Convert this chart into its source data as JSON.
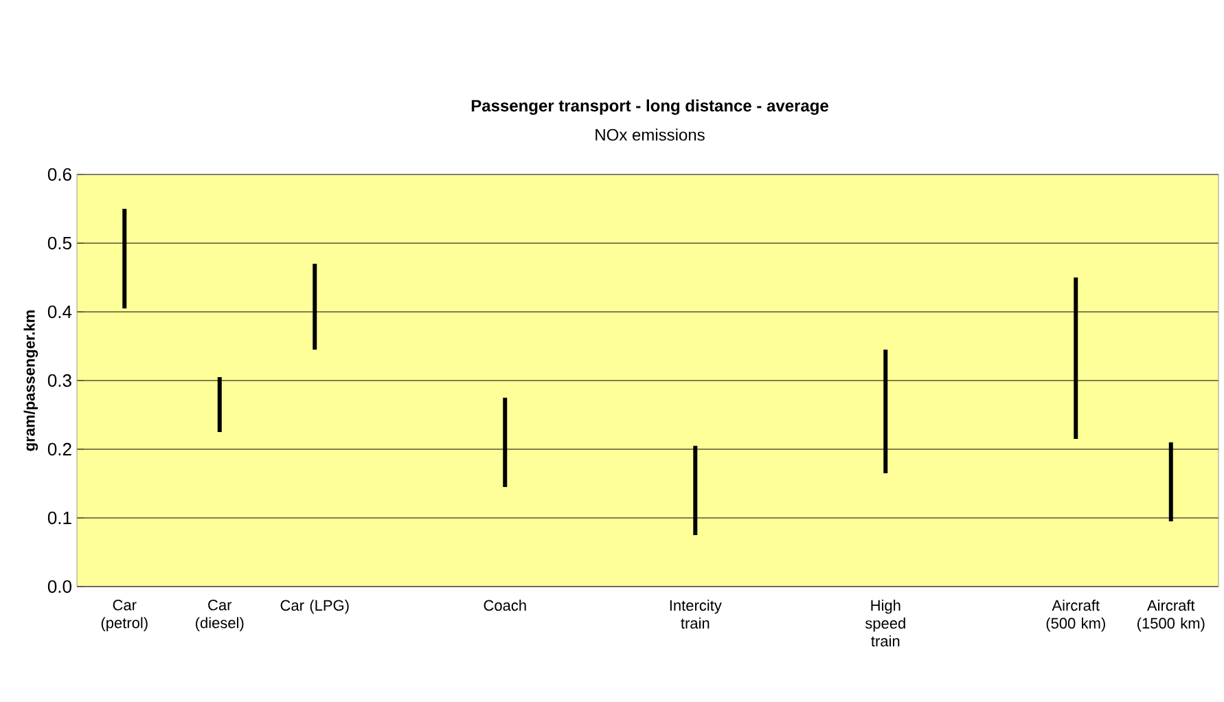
{
  "chart_data": {
    "type": "bar",
    "title": "Passenger transport - long distance - average",
    "subtitle": "NOx emissions",
    "ylabel": "gram/passenger.km",
    "categories": [
      "Car (petrol)",
      "Car (diesel)",
      "Car (LPG)",
      null,
      "Coach",
      null,
      "Intercity train",
      null,
      "High speed train",
      null,
      "Aircraft (500 km)",
      "Aircraft (1500 km)"
    ],
    "base": [
      0.405,
      0.225,
      0.345,
      null,
      0.145,
      null,
      0.075,
      null,
      0.165,
      null,
      0.215,
      0.095
    ],
    "values": [
      0.145,
      0.08,
      0.125,
      null,
      0.13,
      null,
      0.13,
      null,
      0.18,
      null,
      0.235,
      0.115
    ],
    "color": "#000000",
    "ylim": [
      0,
      0.6
    ],
    "yticks": [
      {
        "value": 0,
        "label": "0.0"
      },
      0.1,
      0.2,
      0.3,
      0.4,
      0.5,
      0.6
    ],
    "grid": "y"
  }
}
